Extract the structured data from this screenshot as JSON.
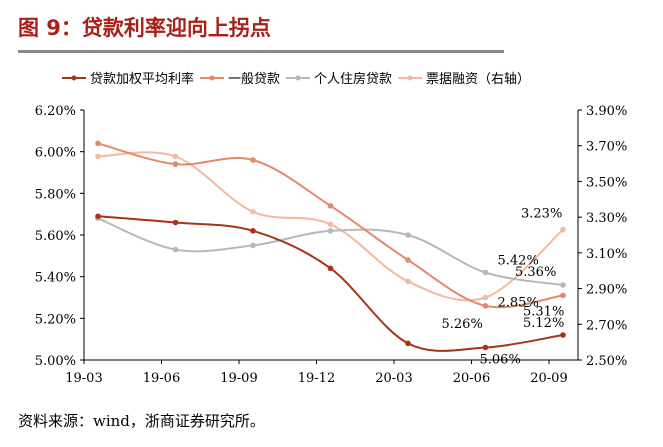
{
  "header": {
    "title": "图 9：贷款利率迎向上拐点"
  },
  "footer": {
    "source": "资料来源：wind，浙商证券研究所。"
  },
  "chart_data": {
    "type": "line",
    "title": "图 9：贷款利率迎向上拐点",
    "categories": [
      "19-03",
      "19-06",
      "19-09",
      "19-12",
      "20-03",
      "20-06",
      "20-09"
    ],
    "ylim_left": [
      5.0,
      6.2
    ],
    "yticks_left": [
      "6.20%",
      "6.00%",
      "5.80%",
      "5.60%",
      "5.40%",
      "5.20%",
      "5.00%"
    ],
    "ylim_right": [
      2.5,
      3.9
    ],
    "yticks_right": [
      "3.90%",
      "3.70%",
      "3.50%",
      "3.30%",
      "3.10%",
      "2.90%",
      "2.70%",
      "2.50%"
    ],
    "legend_position": "top",
    "series": [
      {
        "name": "贷款加权平均利率",
        "axis": "left",
        "color": "#a8321a",
        "values": [
          5.69,
          5.66,
          5.62,
          5.44,
          5.08,
          5.06,
          5.12
        ],
        "labels": {
          "5": "5.06%",
          "6": "5.12%"
        }
      },
      {
        "name": "一般贷款",
        "axis": "left",
        "color": "#e8876a",
        "values": [
          6.04,
          5.94,
          5.96,
          5.74,
          5.48,
          5.26,
          5.31
        ],
        "labels": {
          "5": "5.26%",
          "6": "5.31%"
        }
      },
      {
        "name": "个人住房贷款",
        "axis": "left",
        "color": "#b8b8b8",
        "values": [
          5.68,
          5.53,
          5.55,
          5.62,
          5.6,
          5.42,
          5.36
        ],
        "labels": {
          "5": "5.42%",
          "6": "5.36%"
        }
      },
      {
        "name": "票据融资（右轴）",
        "axis": "right",
        "color": "#f6b8a0",
        "values": [
          3.64,
          3.64,
          3.33,
          3.26,
          2.94,
          2.85,
          3.23
        ],
        "labels": {
          "5": "2.85%",
          "6": "3.23%"
        }
      }
    ]
  }
}
